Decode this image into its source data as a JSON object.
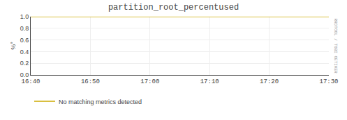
{
  "chart_data": {
    "type": "line",
    "title": "partition_root_percentused",
    "y_label": "%°",
    "categories": [
      "16:40",
      "16:50",
      "17:00",
      "17:10",
      "17:20",
      "17:30"
    ],
    "series": [
      {
        "name": "No matching metrics detected",
        "color": "#ccaa00",
        "values": [
          1.0,
          1.0,
          1.0,
          1.0,
          1.0,
          1.0
        ]
      }
    ],
    "ylim": [
      0.0,
      1.0
    ],
    "yticks": [
      {
        "value": 0.0,
        "label": "0.0"
      },
      0.2,
      0.4,
      0.6,
      0.8,
      {
        "value": 1.0,
        "label": "1.0"
      }
    ],
    "grid": true,
    "legend": "bottom",
    "annotations": [
      "RRDTOOL / TOBI OETIKER"
    ]
  }
}
